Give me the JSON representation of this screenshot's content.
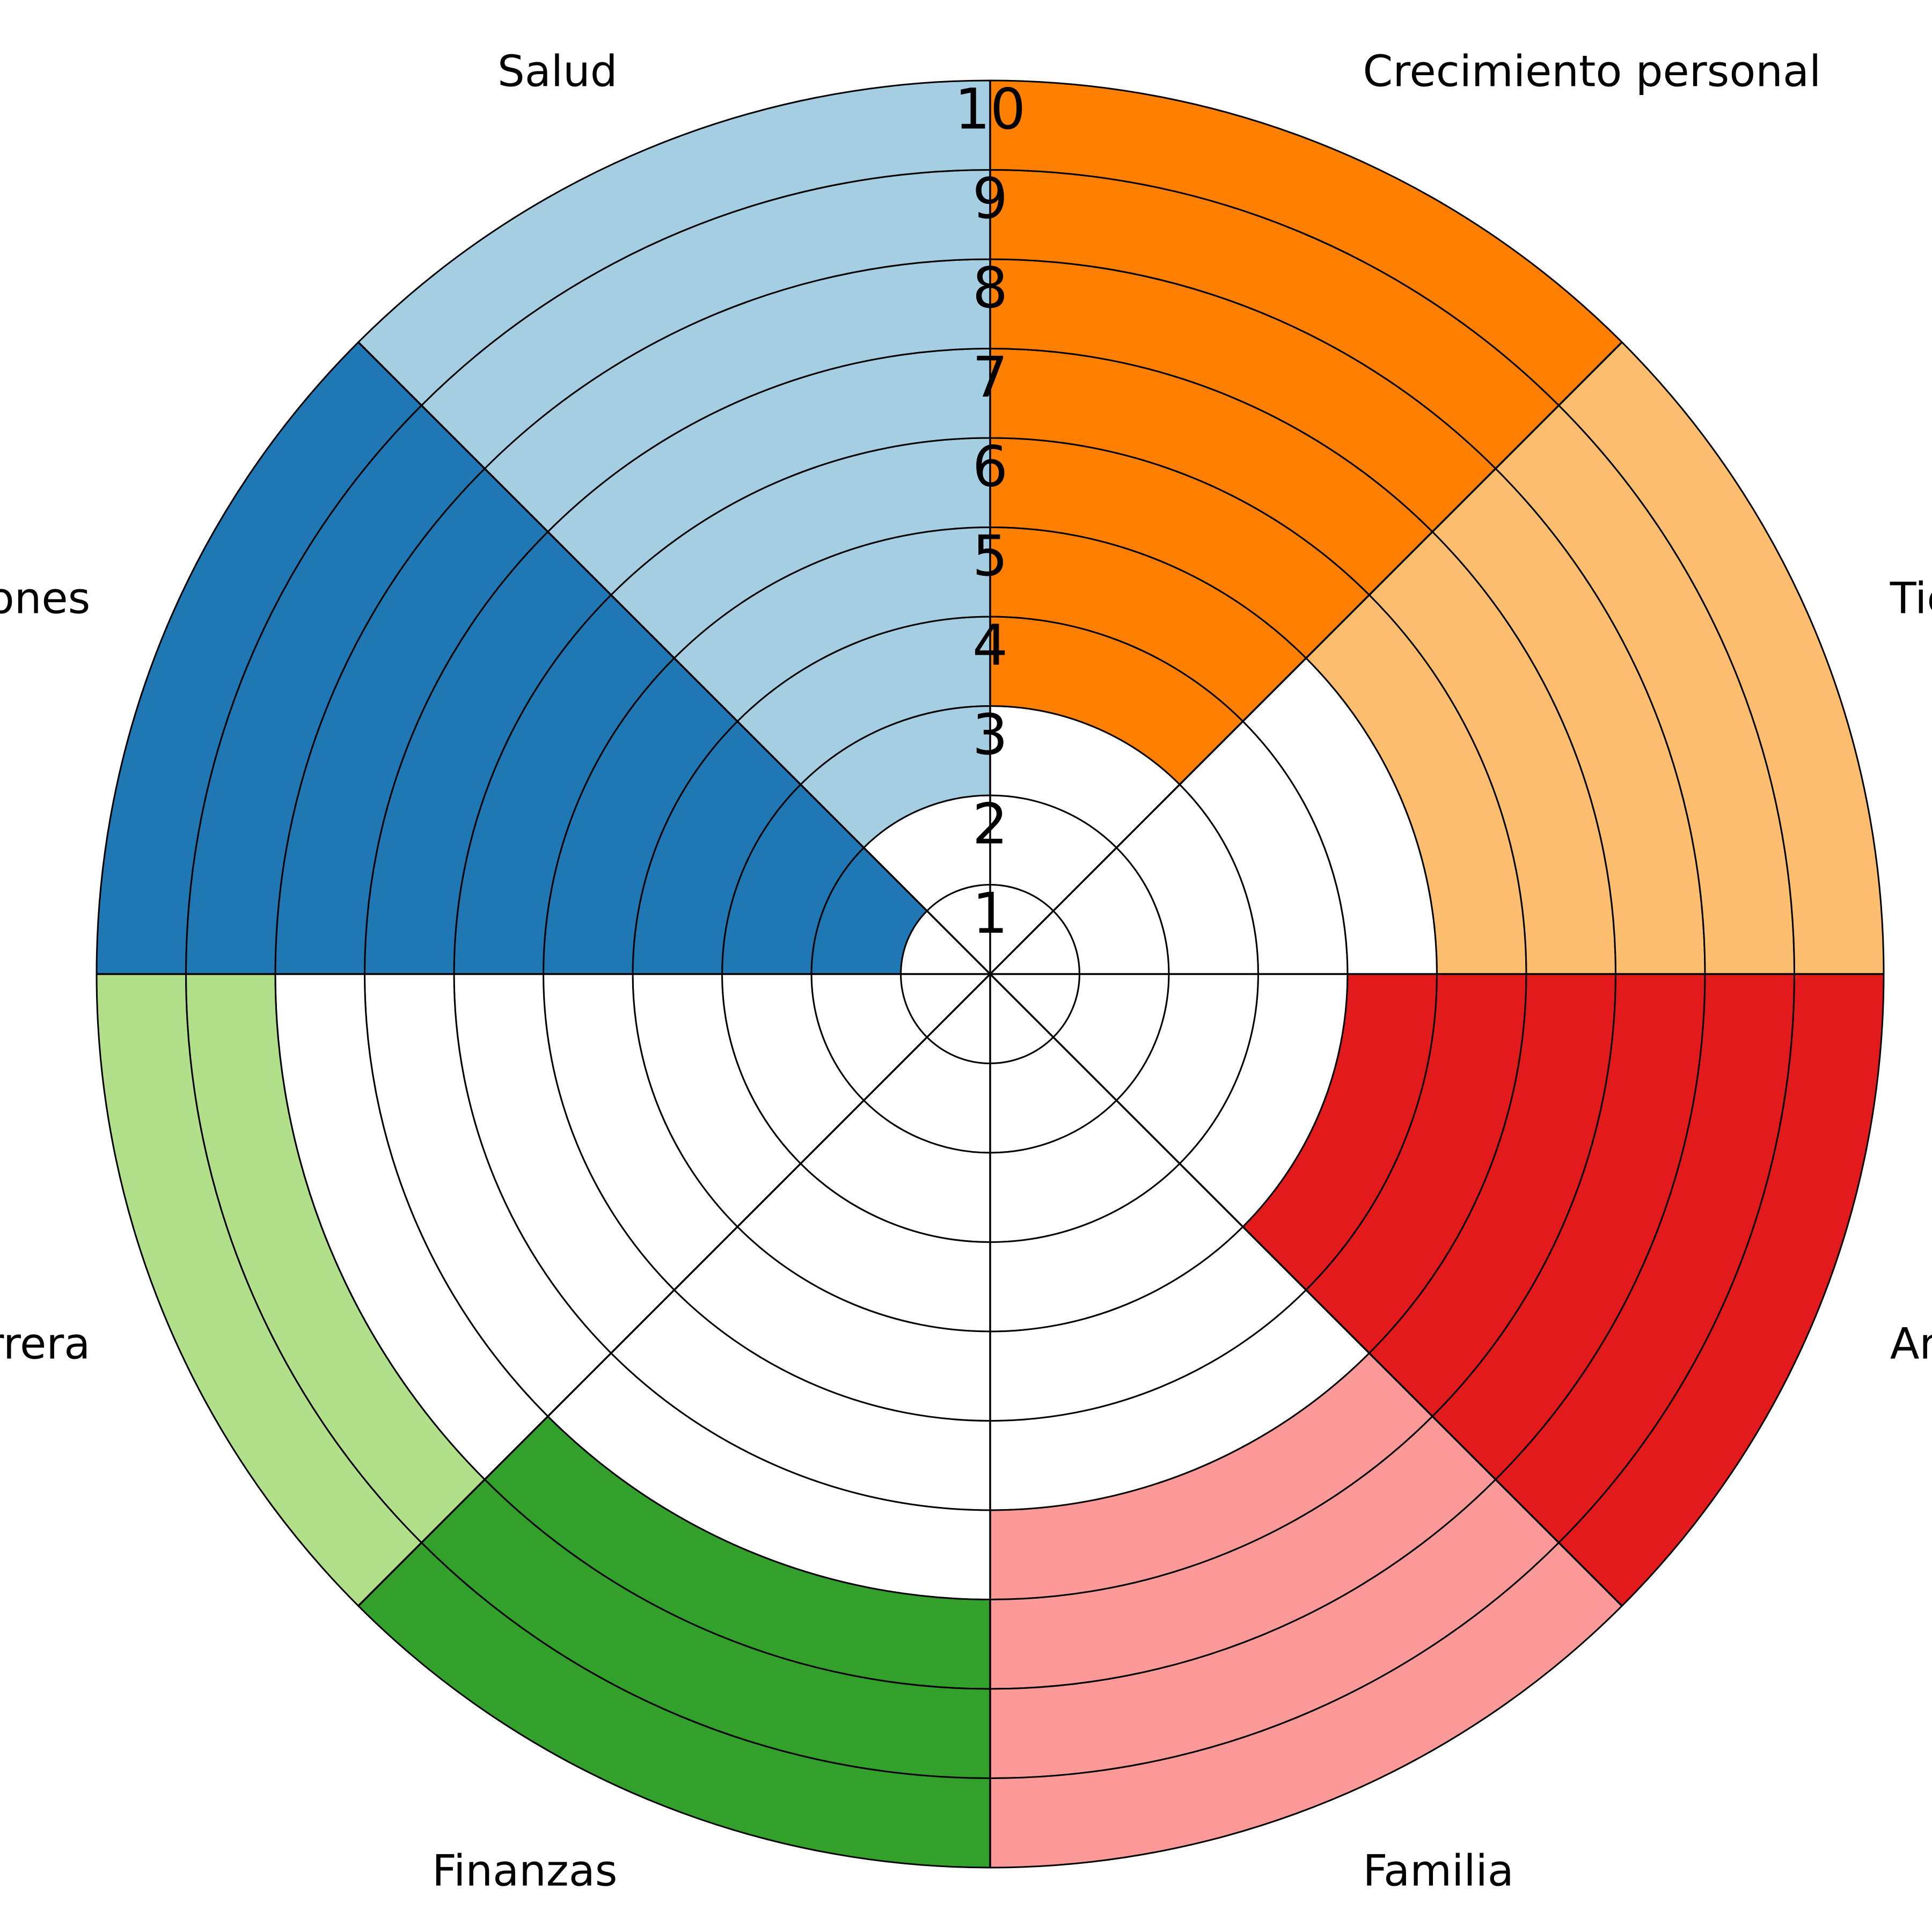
{
  "chart_data": {
    "type": "polar-bar",
    "title": "",
    "rmax": 10,
    "tick_labels": [
      "1",
      "2",
      "3",
      "4",
      "5",
      "6",
      "7",
      "8",
      "9",
      "10"
    ],
    "categories": [
      "Crecimiento personal",
      "Tiempo libre",
      "Amor",
      "Familia",
      "Finanzas",
      "Carrera",
      "Relaciones",
      "Salud"
    ],
    "values": [
      7,
      5,
      6,
      4,
      3,
      2,
      9,
      8
    ],
    "colors": [
      "#ff7f00",
      "#fdbf6f",
      "#e31a1c",
      "#fb9a99",
      "#33a02c",
      "#b2df8a",
      "#1f78b4",
      "#a6cee3"
    ],
    "grid": true,
    "legend": "none"
  }
}
